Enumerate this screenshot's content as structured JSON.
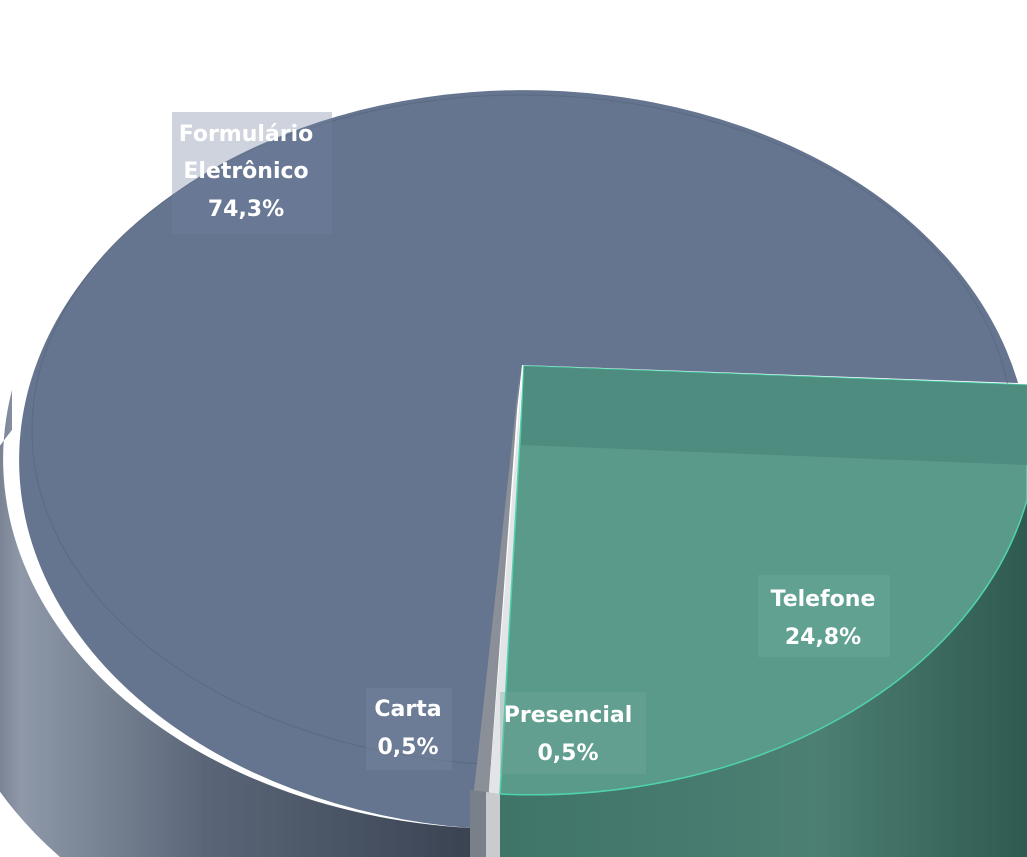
{
  "chart_data": {
    "type": "pie",
    "style": "3d-exploded",
    "slices": [
      {
        "label": [
          "Formulário",
          "Eletrônico"
        ],
        "percent_text": "74,3%",
        "value": 74.3,
        "color": "#65758f"
      },
      {
        "label": [
          "Telefone"
        ],
        "percent_text": "24,8%",
        "value": 24.8,
        "color": "#5a9a8b"
      },
      {
        "label": [
          "Presencial"
        ],
        "percent_text": "0,5%",
        "value": 0.5,
        "color": "#d6d8db"
      },
      {
        "label": [
          "Carta"
        ],
        "percent_text": "0,5%",
        "value": 0.5,
        "color": "#8a8f98"
      }
    ]
  }
}
